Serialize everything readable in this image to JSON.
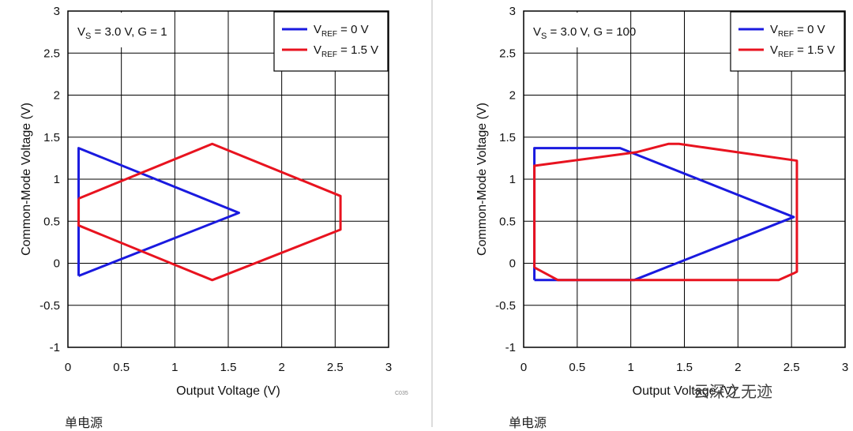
{
  "chart_data": [
    {
      "type": "line",
      "title": "",
      "xlabel": "Output Voltage (V)",
      "ylabel": "Common-Mode Voltage (V)",
      "xlim": [
        0,
        3
      ],
      "ylim": [
        -1,
        3
      ],
      "xticks": [
        0,
        0.5,
        1,
        1.5,
        2,
        2.5,
        3
      ],
      "yticks": [
        3,
        2.5,
        2,
        1.5,
        1,
        0.5,
        0,
        -0.5,
        -1
      ],
      "xtick_labels": [
        "0",
        "0.5",
        "1",
        "1.5",
        "2",
        "2.5",
        "3"
      ],
      "ytick_labels": [
        "3",
        "2.5",
        "2",
        "1.5",
        "1",
        "0.5",
        "0",
        "-0.5",
        "-1"
      ],
      "grid": true,
      "legend_position": "top-right",
      "annotation": {
        "main": "V",
        "sub": "S",
        "rest": " = 3.0 V, G = 1"
      },
      "code": "C035",
      "series": [
        {
          "label": {
            "pre": "V",
            "sub": "REF",
            "post": " = 0 V"
          },
          "color": "#1a1adf",
          "x": [
            0.1,
            0.1,
            1.6,
            0.1,
            0.1
          ],
          "y": [
            -0.15,
            1.37,
            0.6,
            -0.15,
            -0.15
          ]
        },
        {
          "label": {
            "pre": "V",
            "sub": "REF",
            "post": " = 1.5 V"
          },
          "color": "#e8131f",
          "x": [
            0.1,
            1.35,
            2.55,
            2.55,
            1.35,
            0.1,
            0.1
          ],
          "y": [
            0.77,
            1.42,
            0.8,
            0.4,
            -0.2,
            0.45,
            0.77
          ]
        }
      ]
    },
    {
      "type": "line",
      "title": "",
      "xlabel": "Output Voltage (V)",
      "ylabel": "Common-Mode Voltage (V)",
      "xlim": [
        0,
        3
      ],
      "ylim": [
        -1,
        3
      ],
      "xticks": [
        0,
        0.5,
        1,
        1.5,
        2,
        2.5,
        3
      ],
      "yticks": [
        3,
        2.5,
        2,
        1.5,
        1,
        0.5,
        0,
        -0.5,
        -1
      ],
      "xtick_labels": [
        "0",
        "0.5",
        "1",
        "1.5",
        "2",
        "2.5",
        "3"
      ],
      "ytick_labels": [
        "3",
        "2.5",
        "2",
        "1.5",
        "1",
        "0.5",
        "0",
        "-0.5",
        "-1"
      ],
      "grid": true,
      "legend_position": "top-right",
      "annotation": {
        "main": "V",
        "sub": "S",
        "rest": " = 3.0 V, G = 100"
      },
      "code": "",
      "series": [
        {
          "label": {
            "pre": "V",
            "sub": "REF",
            "post": " = 0 V"
          },
          "color": "#1a1adf",
          "x": [
            0.1,
            0.1,
            0.9,
            2.52,
            1.03,
            0.1
          ],
          "y": [
            -0.2,
            1.37,
            1.37,
            0.55,
            -0.2,
            -0.2
          ]
        },
        {
          "label": {
            "pre": "V",
            "sub": "REF",
            "post": " = 1.5 V"
          },
          "color": "#e8131f",
          "x": [
            0.1,
            0.1,
            1.05,
            1.35,
            1.45,
            2.55,
            2.55,
            2.52,
            2.38,
            0.32,
            0.1
          ],
          "y": [
            -0.05,
            1.16,
            1.32,
            1.42,
            1.42,
            1.22,
            -0.1,
            -0.12,
            -0.2,
            -0.2,
            -0.05
          ]
        }
      ]
    }
  ],
  "captions": [
    "单电源",
    "单电源"
  ],
  "watermark": "云深之无迹"
}
